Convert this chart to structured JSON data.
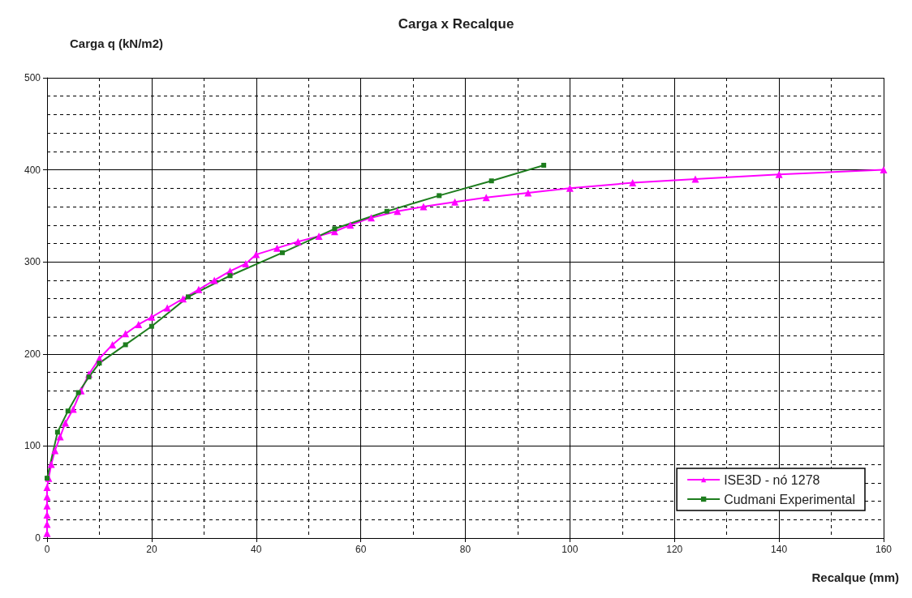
{
  "chart_data": {
    "type": "line",
    "title": "Carga x Recalque",
    "xlabel": "Recalque (mm)",
    "ylabel": "Carga q (kN/m2)",
    "xlim": [
      0,
      160
    ],
    "xticks": [
      0,
      20,
      40,
      60,
      80,
      100,
      120,
      140,
      160
    ],
    "ylim": [
      0,
      500
    ],
    "yticks": [
      0,
      100,
      200,
      300,
      400,
      500
    ],
    "grid": true,
    "legend": "bottom right",
    "line_style": "solid",
    "series": [
      {
        "name": "ISE3D - nó 1278",
        "color": "#ff00ff",
        "marker": "triangle",
        "x": [
          0,
          0,
          0,
          0,
          0,
          0,
          0.3,
          0.8,
          1.5,
          2.5,
          3.5,
          5,
          6.5,
          8,
          10,
          12.5,
          15,
          17.5,
          20,
          23,
          26,
          29,
          32,
          35,
          38,
          40,
          44,
          48,
          52,
          55,
          58,
          62,
          67,
          72,
          78,
          84,
          92,
          100,
          112,
          124,
          140,
          160
        ],
        "values": [
          5,
          15,
          25,
          35,
          45,
          55,
          65,
          80,
          95,
          110,
          125,
          140,
          160,
          178,
          195,
          210,
          222,
          232,
          240,
          250,
          260,
          270,
          280,
          290,
          298,
          308,
          315,
          322,
          328,
          333,
          340,
          348,
          355,
          360,
          365,
          370,
          375,
          380,
          386,
          390,
          395,
          400
        ]
      },
      {
        "name": "Cudmani Experimental",
        "color": "#1e7d1e",
        "marker": "square",
        "x": [
          0,
          2,
          4,
          6,
          8,
          10,
          15,
          20,
          27,
          35,
          45,
          55,
          65,
          75,
          85,
          95
        ],
        "values": [
          65,
          115,
          138,
          158,
          175,
          190,
          210,
          230,
          262,
          285,
          310,
          336,
          355,
          372,
          388,
          405
        ]
      }
    ]
  }
}
